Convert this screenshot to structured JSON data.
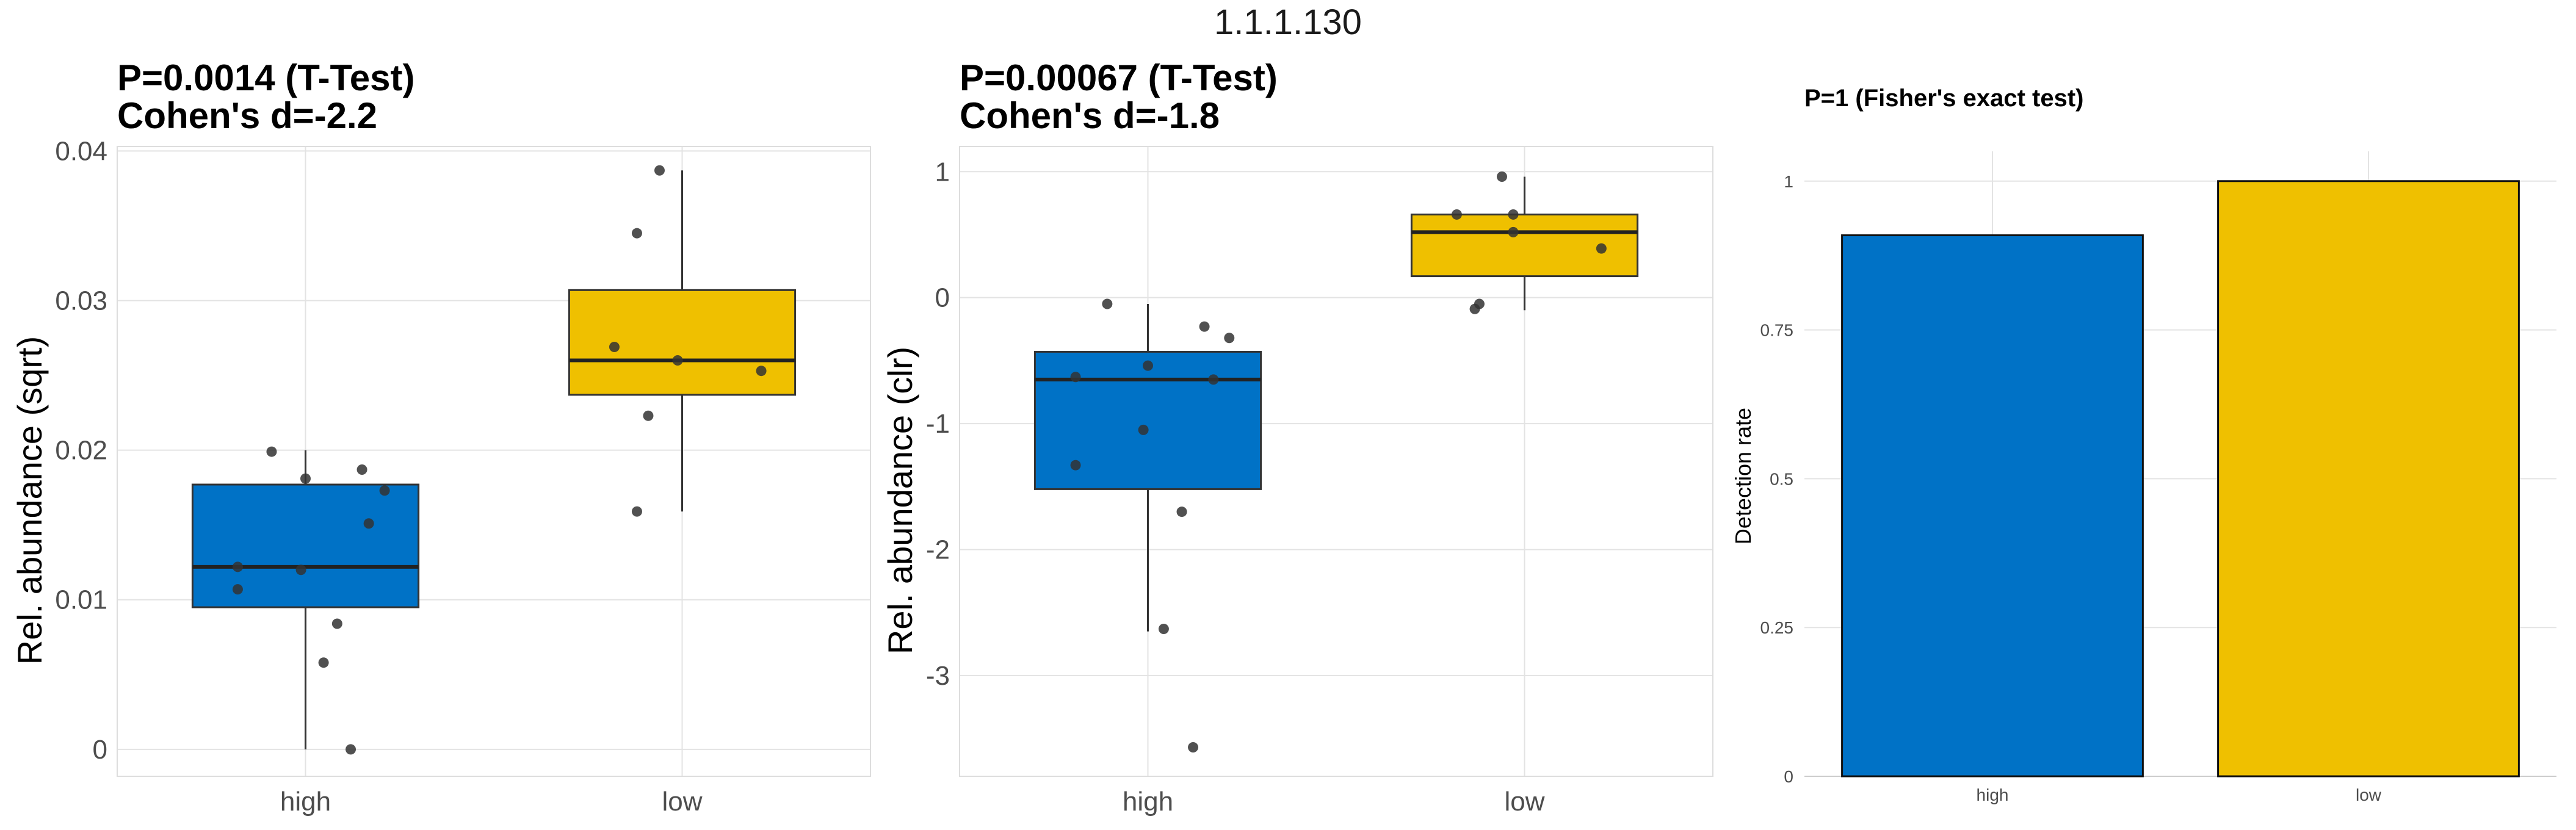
{
  "figure": {
    "title": "1.1.1.130"
  },
  "colors": {
    "high": "#0072C6",
    "low": "#EFC000",
    "point": "#333333",
    "grid": "#e3e3e3"
  },
  "chart_data": [
    {
      "type": "box",
      "title_line1": "P=0.0014 (T-Test)",
      "title_line2": "Cohen's d=-2.2",
      "xlabel": "",
      "ylabel": "Rel. abundance (sqrt)",
      "categories": [
        "high",
        "low"
      ],
      "ylim": [
        -0.0018,
        0.0403
      ],
      "yticks": [
        0,
        0.01,
        0.02,
        0.03,
        0.04
      ],
      "ytick_labels": [
        "0",
        "0.01",
        "0.02",
        "0.03",
        "0.04"
      ],
      "boxes": [
        {
          "group": "high",
          "whisker_low": 0.0,
          "q1": 0.0095,
          "median": 0.0122,
          "q3": 0.0177,
          "whisker_high": 0.02,
          "points": [
            [
              -0.15,
              0.0199
            ],
            [
              0.0,
              0.0181
            ],
            [
              0.25,
              0.0187
            ],
            [
              0.35,
              0.0173
            ],
            [
              0.28,
              0.0151
            ],
            [
              -0.3,
              0.0122
            ],
            [
              -0.02,
              0.012
            ],
            [
              -0.3,
              0.0107
            ],
            [
              0.14,
              0.0084
            ],
            [
              0.08,
              0.0058
            ],
            [
              0.2,
              0.0
            ]
          ]
        },
        {
          "group": "low",
          "whisker_low": 0.0159,
          "q1": 0.0237,
          "median": 0.026,
          "q3": 0.0307,
          "whisker_high": 0.0387,
          "points": [
            [
              -0.1,
              0.0387
            ],
            [
              -0.2,
              0.0345
            ],
            [
              -0.3,
              0.0269
            ],
            [
              -0.02,
              0.026
            ],
            [
              0.35,
              0.0253
            ],
            [
              -0.15,
              0.0223
            ],
            [
              -0.2,
              0.0159
            ]
          ]
        }
      ]
    },
    {
      "type": "box",
      "title_line1": "P=0.00067 (T-Test)",
      "title_line2": "Cohen's d=-1.8",
      "xlabel": "",
      "ylabel": "Rel. abundance (clr)",
      "categories": [
        "high",
        "low"
      ],
      "ylim": [
        -3.8,
        1.2
      ],
      "yticks": [
        -3,
        -2,
        -1,
        0,
        1
      ],
      "ytick_labels": [
        "-3",
        "-2",
        "-1",
        "0",
        "1"
      ],
      "boxes": [
        {
          "group": "high",
          "whisker_low": -2.65,
          "q1": -1.52,
          "median": -0.65,
          "q3": -0.43,
          "whisker_high": -0.05,
          "points": [
            [
              -0.18,
              -0.05
            ],
            [
              0.25,
              -0.23
            ],
            [
              0.36,
              -0.32
            ],
            [
              0.0,
              -0.54
            ],
            [
              -0.32,
              -0.63
            ],
            [
              0.29,
              -0.65
            ],
            [
              -0.02,
              -1.05
            ],
            [
              -0.32,
              -1.33
            ],
            [
              0.15,
              -1.7
            ],
            [
              0.07,
              -2.63
            ],
            [
              0.2,
              -3.57
            ]
          ]
        },
        {
          "group": "low",
          "whisker_low": -0.1,
          "q1": 0.17,
          "median": 0.52,
          "q3": 0.66,
          "whisker_high": 0.96,
          "points": [
            [
              -0.1,
              0.96
            ],
            [
              -0.3,
              0.66
            ],
            [
              -0.05,
              0.66
            ],
            [
              -0.05,
              0.52
            ],
            [
              0.34,
              0.39
            ],
            [
              -0.2,
              -0.05
            ],
            [
              -0.22,
              -0.09
            ]
          ]
        }
      ]
    },
    {
      "type": "bar",
      "title": "P=1 (Fisher's exact test)",
      "xlabel": "",
      "ylabel": "Detection rate",
      "categories": [
        "high",
        "low"
      ],
      "values": [
        0.909,
        1.0
      ],
      "ylim": [
        0,
        1.05
      ],
      "yticks": [
        0,
        0.25,
        0.5,
        0.75,
        1
      ],
      "ytick_labels": [
        "0",
        "0.25",
        "0.5",
        "0.75",
        "1"
      ]
    }
  ]
}
